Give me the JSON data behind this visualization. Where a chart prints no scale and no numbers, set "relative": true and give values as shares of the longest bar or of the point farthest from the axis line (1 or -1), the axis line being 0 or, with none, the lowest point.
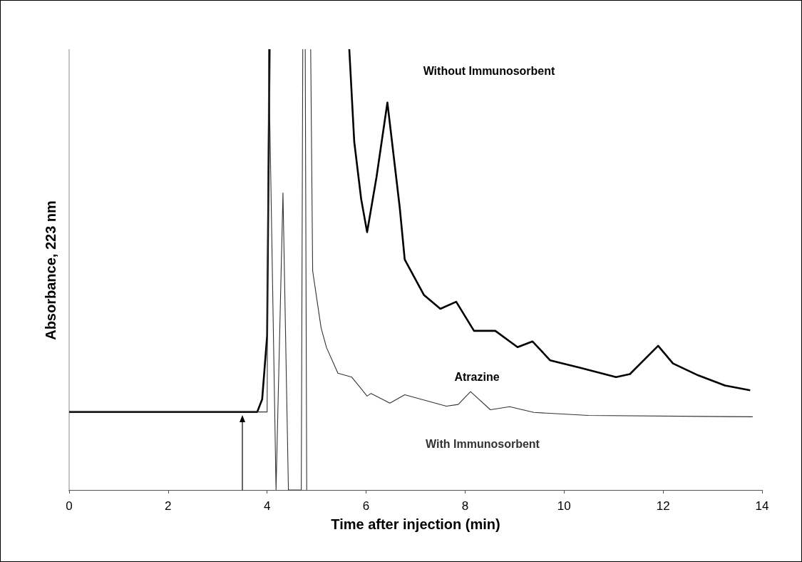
{
  "chart_data": {
    "type": "line",
    "relative": true,
    "xlabel": "Time after injection (min)",
    "ylabel": "Absorbance, 223 nm",
    "xlim": [
      0,
      14
    ],
    "xticks": [
      0,
      2,
      4,
      6,
      8,
      10,
      12,
      14
    ],
    "grid": false,
    "marker": "none",
    "line_style": "solid",
    "annotations": [
      "Atrazine"
    ],
    "series": [
      {
        "name": "Without Immunosorbent",
        "color": "#000000",
        "x": [
          0,
          1,
          2,
          3,
          3.8,
          3.9,
          4.0,
          4.05,
          4.06,
          5.64,
          5.66,
          5.76,
          5.9,
          6.02,
          6.21,
          6.43,
          6.68,
          6.78,
          7.17,
          7.5,
          7.82,
          8.18,
          8.61,
          9.06,
          9.36,
          9.72,
          10.33,
          11.05,
          11.33,
          11.9,
          12.2,
          12.71,
          13.25,
          13.76
        ],
        "values": [
          0.177,
          0.177,
          0.177,
          0.177,
          0.177,
          0.206,
          0.35,
          1,
          null,
          null,
          1,
          0.79,
          0.66,
          0.585,
          0.71,
          0.879,
          0.64,
          0.523,
          0.442,
          0.411,
          0.427,
          0.361,
          0.361,
          0.324,
          0.337,
          0.294,
          0.277,
          0.256,
          0.263,
          0.327,
          0.287,
          0.26,
          0.237,
          0.226
        ]
      },
      {
        "name": "With Immunosorbent",
        "color": "#333333",
        "x": [
          0,
          1,
          2,
          3,
          4.0,
          4.03,
          4.18,
          4.32,
          4.43,
          4.69,
          4.72,
          4.75,
          4.77,
          4.8,
          4.84,
          4.88,
          4.92,
          5.09,
          5.2,
          5.43,
          5.71,
          6.02,
          6.1,
          6.48,
          6.78,
          7.62,
          7.86,
          8.11,
          8.51,
          8.9,
          9.39,
          10.49,
          13.81
        ],
        "values": [
          0.177,
          0.177,
          0.177,
          0.177,
          0.177,
          1,
          0,
          0.674,
          0,
          0,
          1,
          null,
          1,
          0,
          null,
          1,
          0.497,
          0.368,
          0.323,
          0.265,
          0.256,
          0.213,
          0.219,
          0.197,
          0.216,
          0.19,
          0.194,
          0.223,
          0.182,
          0.189,
          0.176,
          0.169,
          0.166
        ]
      }
    ]
  }
}
